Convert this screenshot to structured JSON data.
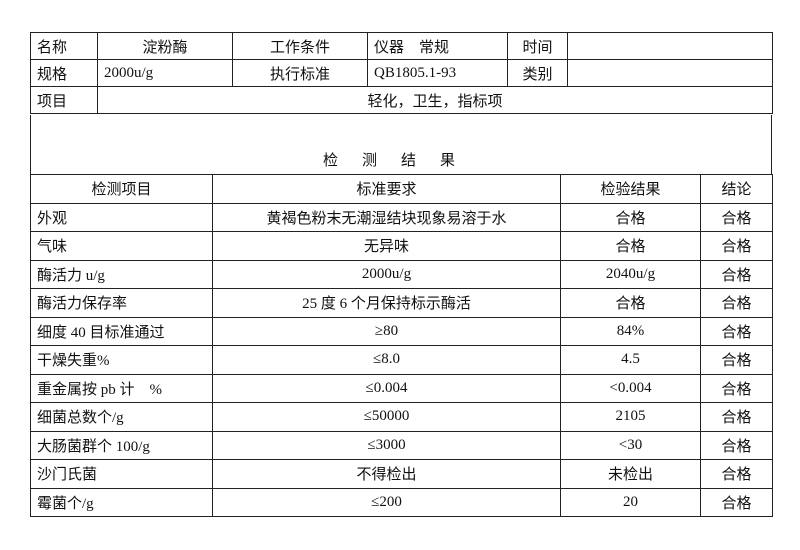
{
  "header": {
    "name_label": "名称",
    "name_value": "淀粉酶",
    "work_cond_label": "工作条件",
    "work_cond_value": "仪器　常规",
    "time_label": "时间",
    "time_value": "",
    "spec_label": "规格",
    "spec_value": "2000u/g",
    "standard_label": "执行标准",
    "standard_value": "QB1805.1-93",
    "category_label": "类别",
    "category_value": "",
    "item_label": "项目",
    "item_value": "轻化，卫生，指标项"
  },
  "section_title": "检测结果",
  "results": {
    "columns": [
      "检测项目",
      "标准要求",
      "检验结果",
      "结论"
    ],
    "rows": [
      [
        "外观",
        "黄褐色粉末无潮湿结块现象易溶于水",
        "合格",
        "合格"
      ],
      [
        "气味",
        "无异味",
        "合格",
        "合格"
      ],
      [
        "酶活力 u/g",
        "2000u/g",
        "2040u/g",
        "合格"
      ],
      [
        "酶活力保存率",
        "25 度 6 个月保持标示酶活",
        "合格",
        "合格"
      ],
      [
        "细度 40 目标准通过",
        "≥80",
        "84%",
        "合格"
      ],
      [
        "干燥失重%",
        "≤8.0",
        "4.5",
        "合格"
      ],
      [
        "重金属按 pb 计　%",
        "≤0.004",
        "<0.004",
        "合格"
      ],
      [
        "细菌总数个/g",
        "≤50000",
        "2105",
        "合格"
      ],
      [
        "大肠菌群个 100/g",
        "≤3000",
        "<30",
        "合格"
      ],
      [
        "沙门氏菌",
        "不得检出",
        "未检出",
        "合格"
      ],
      [
        "霉菌个/g",
        "≤200",
        "20",
        "合格"
      ]
    ]
  }
}
